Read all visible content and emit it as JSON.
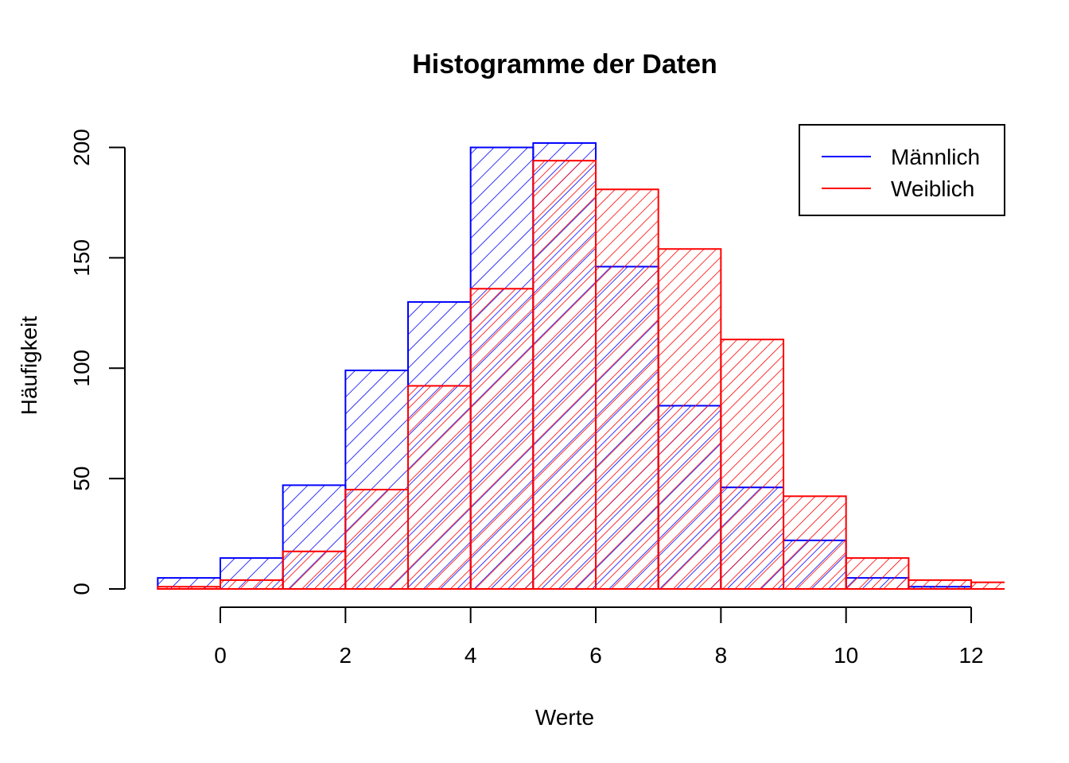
{
  "chart_data": {
    "type": "bar",
    "title": "Histogramme der Daten",
    "xlabel": "Werte",
    "ylabel": "Häufigkeit",
    "bin_edges": [
      -1,
      0,
      1,
      2,
      3,
      4,
      5,
      6,
      7,
      8,
      9,
      10,
      11,
      12,
      13
    ],
    "xlim": [
      -1,
      12.5
    ],
    "ylim": [
      0,
      200
    ],
    "x_ticks": [
      0,
      2,
      4,
      6,
      8,
      10,
      12
    ],
    "y_ticks": [
      0,
      50,
      100,
      150,
      200
    ],
    "x_tick_labels": [
      "0",
      "2",
      "4",
      "6",
      "8",
      "10",
      "12"
    ],
    "y_tick_labels": [
      "0",
      "50",
      "100",
      "150",
      "200"
    ],
    "series": [
      {
        "name": "Männlich",
        "color": "#0000ff",
        "hatch": "45deg",
        "values": [
          5,
          14,
          47,
          99,
          130,
          200,
          202,
          146,
          83,
          46,
          22,
          5,
          1,
          0
        ]
      },
      {
        "name": "Weiblich",
        "color": "#ff0000",
        "hatch": "45deg",
        "values": [
          1,
          4,
          17,
          45,
          92,
          136,
          194,
          181,
          154,
          113,
          42,
          14,
          4,
          3
        ]
      }
    ],
    "legend": {
      "position": "top-right"
    },
    "grid": false
  }
}
